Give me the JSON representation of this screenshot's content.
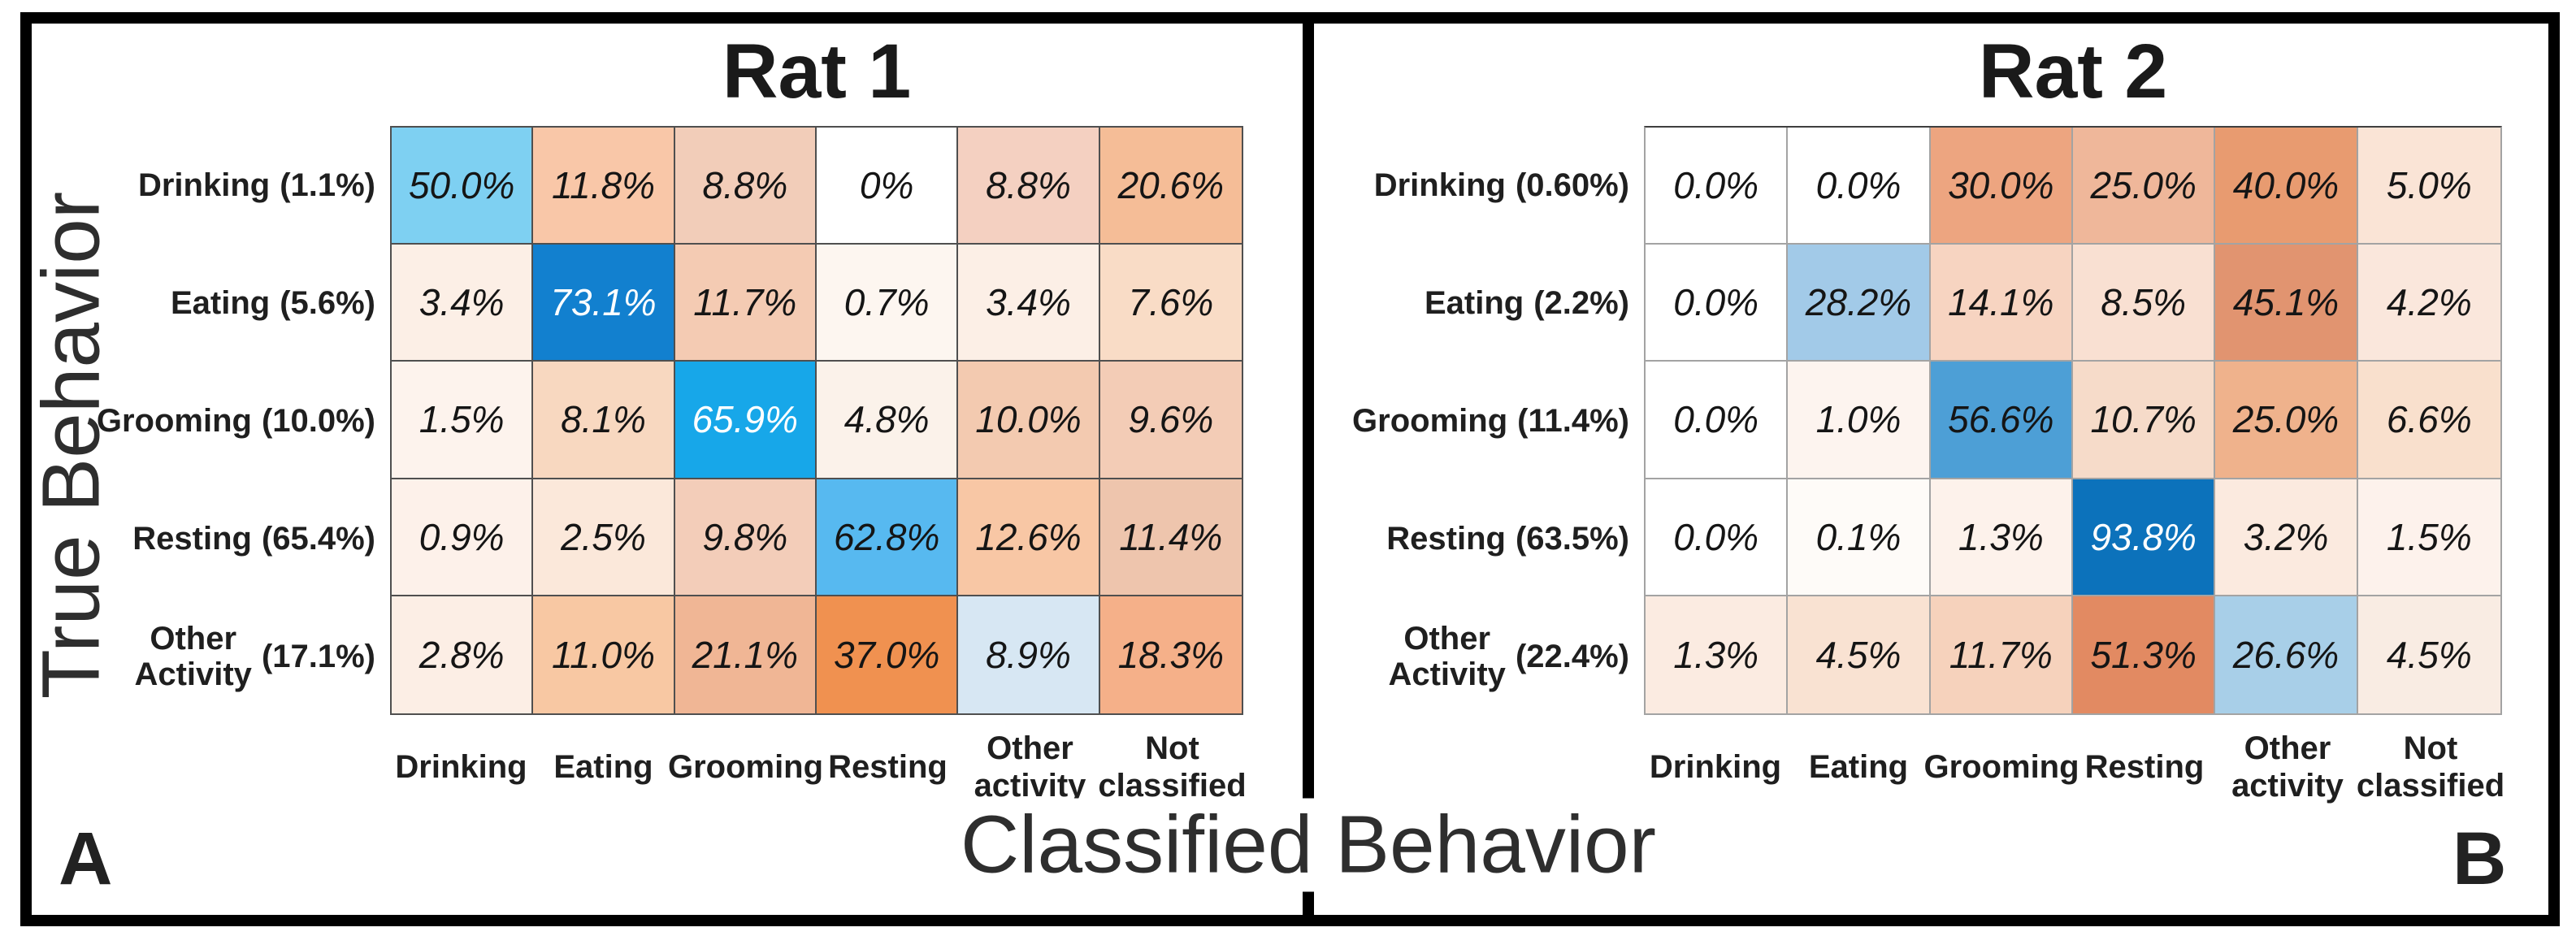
{
  "figure": {
    "y_axis_label": "True Behavior",
    "x_axis_label": "Classified Behavior"
  },
  "chart_data": [
    {
      "type": "heatmap",
      "title": "Rat 1",
      "panel_label": "A",
      "x_axis_label": "Classified Behavior",
      "y_axis_label": "True Behavior",
      "diagonal_color_scale": "blue",
      "offdiagonal_color_scale": "orange",
      "grid_color": "#4f4f4f",
      "top_border_color": "#4f4f4f",
      "columns": [
        "Drinking",
        "Eating",
        "Grooming",
        "Resting",
        "Other activity",
        "Not classified"
      ],
      "column_labels": [
        {
          "lines": [
            "Drinking"
          ]
        },
        {
          "lines": [
            "Eating"
          ]
        },
        {
          "lines": [
            "Grooming"
          ]
        },
        {
          "lines": [
            "Resting"
          ]
        },
        {
          "lines": [
            "Other",
            "activity"
          ]
        },
        {
          "lines": [
            "Not",
            "classified"
          ]
        }
      ],
      "rows": [
        "Drinking (1.1%)",
        "Eating (5.6%)",
        "Grooming (10.0%)",
        "Resting (65.4%)",
        "Other Activity (17.1%)"
      ],
      "row_labels": [
        {
          "lines": [
            "Drinking"
          ],
          "pct": "(1.1%)"
        },
        {
          "lines": [
            "Eating"
          ],
          "pct": "(5.6%)"
        },
        {
          "lines": [
            "Grooming"
          ],
          "pct": "(10.0%)"
        },
        {
          "lines": [
            "Resting"
          ],
          "pct": "(65.4%)"
        },
        {
          "lines": [
            "Other",
            "Activity"
          ],
          "pct": "(17.1%)"
        }
      ],
      "row_priors_percent": [
        1.1,
        5.6,
        10.0,
        65.4,
        17.1
      ],
      "values_percent": [
        [
          50.0,
          11.8,
          8.8,
          0,
          8.8,
          20.6
        ],
        [
          3.4,
          73.1,
          11.7,
          0.7,
          3.4,
          7.6
        ],
        [
          1.5,
          8.1,
          65.9,
          4.8,
          10.0,
          9.6
        ],
        [
          0.9,
          2.5,
          9.8,
          62.8,
          12.6,
          11.4
        ],
        [
          2.8,
          11.0,
          21.1,
          37.0,
          8.9,
          18.3
        ]
      ],
      "cells": [
        [
          {
            "label": "50.0%",
            "bg": "#7ed0f2",
            "fg": "#151515"
          },
          {
            "label": "11.8%",
            "bg": "#f9c7a8",
            "fg": "#151515"
          },
          {
            "label": "8.8%",
            "bg": "#f2cdb9",
            "fg": "#151515"
          },
          {
            "label": "0%",
            "bg": "#ffffff",
            "fg": "#151515"
          },
          {
            "label": "8.8%",
            "bg": "#f4d0c1",
            "fg": "#151515"
          },
          {
            "label": "20.6%",
            "bg": "#f5bd97",
            "fg": "#151515"
          }
        ],
        [
          {
            "label": "3.4%",
            "bg": "#fcefe6",
            "fg": "#151515"
          },
          {
            "label": "73.1%",
            "bg": "#1280cf",
            "fg": "#ffffff"
          },
          {
            "label": "11.7%",
            "bg": "#f4cbb3",
            "fg": "#151515"
          },
          {
            "label": "0.7%",
            "bg": "#fdf6f0",
            "fg": "#151515"
          },
          {
            "label": "3.4%",
            "bg": "#fcefe6",
            "fg": "#151515"
          },
          {
            "label": "7.6%",
            "bg": "#f9dcc6",
            "fg": "#151515"
          }
        ],
        [
          {
            "label": "1.5%",
            "bg": "#fdf3ed",
            "fg": "#151515"
          },
          {
            "label": "8.1%",
            "bg": "#f8d8c0",
            "fg": "#151515"
          },
          {
            "label": "65.9%",
            "bg": "#17a7e9",
            "fg": "#ffffff"
          },
          {
            "label": "4.8%",
            "bg": "#fbf2ea",
            "fg": "#151515"
          },
          {
            "label": "10.0%",
            "bg": "#f3cab0",
            "fg": "#151515"
          },
          {
            "label": "9.6%",
            "bg": "#f3ccb6",
            "fg": "#151515"
          }
        ],
        [
          {
            "label": "0.9%",
            "bg": "#fdf1ea",
            "fg": "#151515"
          },
          {
            "label": "2.5%",
            "bg": "#fbe8da",
            "fg": "#151515"
          },
          {
            "label": "9.8%",
            "bg": "#f3cdb9",
            "fg": "#151515"
          },
          {
            "label": "62.8%",
            "bg": "#57b9f0",
            "fg": "#151515"
          },
          {
            "label": "12.6%",
            "bg": "#f8c7a5",
            "fg": "#151515"
          },
          {
            "label": "11.4%",
            "bg": "#eec5ad",
            "fg": "#151515"
          }
        ],
        [
          {
            "label": "2.8%",
            "bg": "#fceee5",
            "fg": "#151515"
          },
          {
            "label": "11.0%",
            "bg": "#f8c8a3",
            "fg": "#151515"
          },
          {
            "label": "21.1%",
            "bg": "#f0b695",
            "fg": "#151515"
          },
          {
            "label": "37.0%",
            "bg": "#f09150",
            "fg": "#151515"
          },
          {
            "label": "8.9%",
            "bg": "#d7e7f3",
            "fg": "#151515"
          },
          {
            "label": "18.3%",
            "bg": "#f5b089",
            "fg": "#151515"
          }
        ]
      ]
    },
    {
      "type": "heatmap",
      "title": "Rat 2",
      "panel_label": "B",
      "x_axis_label": "Classified Behavior",
      "y_axis_label": "True Behavior",
      "diagonal_color_scale": "blue",
      "offdiagonal_color_scale": "orange",
      "grid_color": "#a3a3a3",
      "top_border_color": "#3f3f3f",
      "columns": [
        "Drinking",
        "Eating",
        "Grooming",
        "Resting",
        "Other activity",
        "Not classified"
      ],
      "column_labels": [
        {
          "lines": [
            "Drinking"
          ]
        },
        {
          "lines": [
            "Eating"
          ]
        },
        {
          "lines": [
            "Grooming"
          ]
        },
        {
          "lines": [
            "Resting"
          ]
        },
        {
          "lines": [
            "Other",
            "activity"
          ]
        },
        {
          "lines": [
            "Not",
            "classified"
          ]
        }
      ],
      "rows": [
        "Drinking (0.60%)",
        "Eating (2.2%)",
        "Grooming (11.4%)",
        "Resting (63.5%)",
        "Other Activity (22.4%)"
      ],
      "row_labels": [
        {
          "lines": [
            "Drinking"
          ],
          "pct": "(0.60%)"
        },
        {
          "lines": [
            "Eating"
          ],
          "pct": "(2.2%)"
        },
        {
          "lines": [
            "Grooming"
          ],
          "pct": "(11.4%)"
        },
        {
          "lines": [
            "Resting"
          ],
          "pct": "(63.5%)"
        },
        {
          "lines": [
            "Other",
            "Activity"
          ],
          "pct": "(22.4%)"
        }
      ],
      "row_priors_percent": [
        0.6,
        2.2,
        11.4,
        63.5,
        22.4
      ],
      "values_percent": [
        [
          0.0,
          0.0,
          30.0,
          25.0,
          40.0,
          5.0
        ],
        [
          0.0,
          28.2,
          14.1,
          8.5,
          45.1,
          4.2
        ],
        [
          0.0,
          1.0,
          56.6,
          10.7,
          25.0,
          6.6
        ],
        [
          0.0,
          0.1,
          1.3,
          93.8,
          3.2,
          1.5
        ],
        [
          1.3,
          4.5,
          11.7,
          51.3,
          26.6,
          4.5
        ]
      ],
      "cells": [
        [
          {
            "label": "0.0%",
            "bg": "#ffffff",
            "fg": "#151515"
          },
          {
            "label": "0.0%",
            "bg": "#ffffff",
            "fg": "#151515"
          },
          {
            "label": "30.0%",
            "bg": "#eda580",
            "fg": "#151515"
          },
          {
            "label": "25.0%",
            "bg": "#efb79a",
            "fg": "#151515"
          },
          {
            "label": "40.0%",
            "bg": "#e89b70",
            "fg": "#151515"
          },
          {
            "label": "5.0%",
            "bg": "#fae4d6",
            "fg": "#151515"
          }
        ],
        [
          {
            "label": "0.0%",
            "bg": "#ffffff",
            "fg": "#151515"
          },
          {
            "label": "28.2%",
            "bg": "#a2cae8",
            "fg": "#151515"
          },
          {
            "label": "14.1%",
            "bg": "#f7d4c1",
            "fg": "#151515"
          },
          {
            "label": "8.5%",
            "bg": "#f9e0d2",
            "fg": "#151515"
          },
          {
            "label": "45.1%",
            "bg": "#e19470",
            "fg": "#151515"
          },
          {
            "label": "4.2%",
            "bg": "#fae7dc",
            "fg": "#151515"
          }
        ],
        [
          {
            "label": "0.0%",
            "bg": "#ffffff",
            "fg": "#151515"
          },
          {
            "label": "1.0%",
            "bg": "#fdf4ef",
            "fg": "#151515"
          },
          {
            "label": "56.6%",
            "bg": "#4d9fd6",
            "fg": "#151515"
          },
          {
            "label": "10.7%",
            "bg": "#f6dbc9",
            "fg": "#151515"
          },
          {
            "label": "25.0%",
            "bg": "#efb28c",
            "fg": "#151515"
          },
          {
            "label": "6.6%",
            "bg": "#f9e0cd",
            "fg": "#151515"
          }
        ],
        [
          {
            "label": "0.0%",
            "bg": "#ffffff",
            "fg": "#151515"
          },
          {
            "label": "0.1%",
            "bg": "#fefbf8",
            "fg": "#151515"
          },
          {
            "label": "1.3%",
            "bg": "#fdf2eb",
            "fg": "#151515"
          },
          {
            "label": "93.8%",
            "bg": "#0c72bb",
            "fg": "#ffffff"
          },
          {
            "label": "3.2%",
            "bg": "#fbeadf",
            "fg": "#151515"
          },
          {
            "label": "1.5%",
            "bg": "#fdf2ec",
            "fg": "#151515"
          }
        ],
        [
          {
            "label": "1.3%",
            "bg": "#fbebe1",
            "fg": "#151515"
          },
          {
            "label": "4.5%",
            "bg": "#f9e2d2",
            "fg": "#151515"
          },
          {
            "label": "11.7%",
            "bg": "#f6d2bc",
            "fg": "#151515"
          },
          {
            "label": "51.3%",
            "bg": "#e28a62",
            "fg": "#151515"
          },
          {
            "label": "26.6%",
            "bg": "#a8cfe8",
            "fg": "#151515"
          },
          {
            "label": "4.5%",
            "bg": "#f9ece3",
            "fg": "#151515"
          }
        ]
      ]
    }
  ]
}
